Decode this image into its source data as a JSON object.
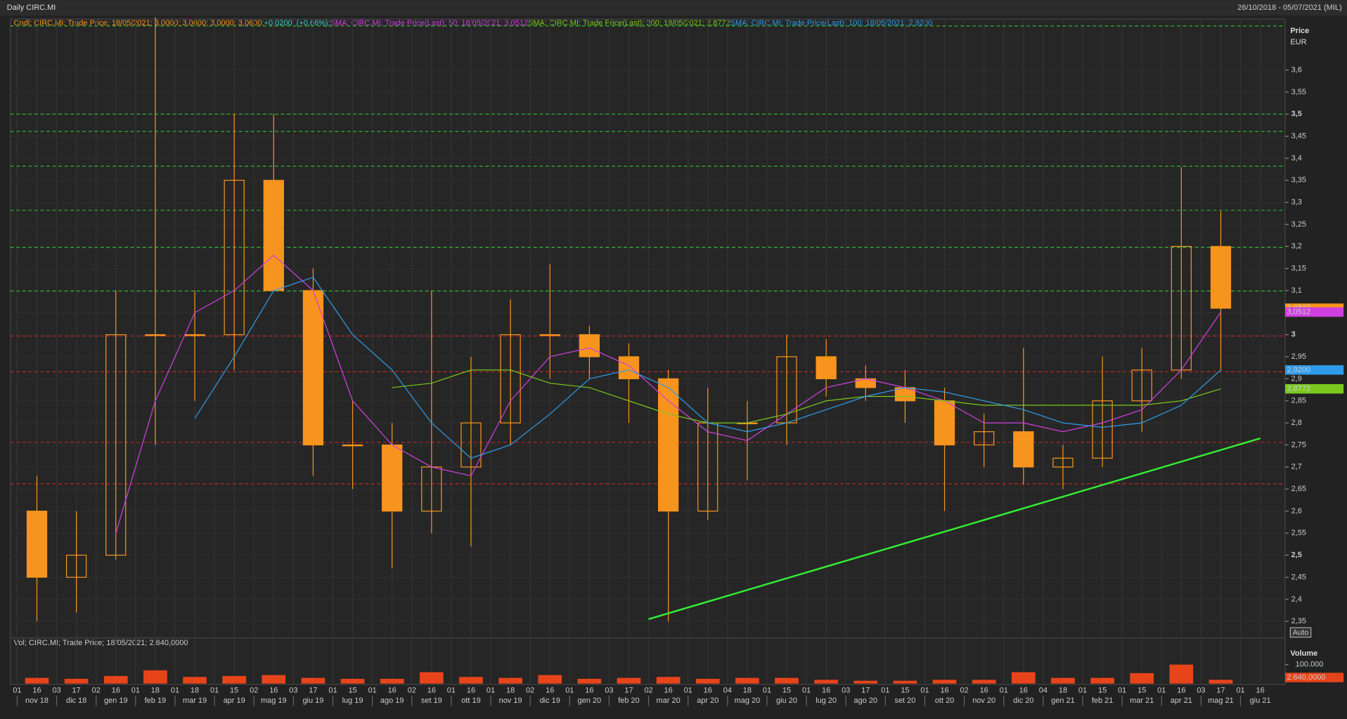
{
  "header": {
    "title": "Daily CIRC.MI",
    "range": "26/10/2018 - 05/07/2021 (MIL)",
    "auto": "Auto"
  },
  "chart_data": [
    {
      "type": "candlestick",
      "y_title": "Price",
      "y_unit": "EUR",
      "name": "Cndl; CIRC.MI; Trade Price; 18/05/2021; 3,0000; 3,0600; 3,0000; 3,0600;",
      "change": "+0,0200; (+0,66%);",
      "color": "#f7941d",
      "change_color": "#3fd0d0",
      "last_label": "3,0600",
      "categories": [
        "nov 18",
        "dic 18",
        "gen 19",
        "feb 19",
        "mar 19",
        "apr 19",
        "mag 19",
        "giu 19",
        "lug 19",
        "ago 19",
        "set 19",
        "ott 19",
        "nov 19",
        "dic 19",
        "gen 20",
        "feb 20",
        "mar 20",
        "apr 20",
        "mag 20",
        "giu 20",
        "lug 20",
        "ago 20",
        "set 20",
        "ott 20",
        "nov 20",
        "dic 20",
        "gen 21",
        "feb 21",
        "mar 21",
        "apr 21",
        "mag 21",
        "giu 21"
      ],
      "day_ticks": [
        "01",
        "16",
        "03",
        "17",
        "02",
        "16",
        "01",
        "18",
        "01",
        "18",
        "01",
        "15",
        "02",
        "16",
        "03",
        "17",
        "01",
        "15",
        "01",
        "16",
        "02",
        "16",
        "01",
        "16",
        "01",
        "18",
        "02",
        "16",
        "01",
        "16",
        "03",
        "17",
        "02",
        "16",
        "01",
        "16",
        "04",
        "18",
        "01",
        "15",
        "01",
        "16",
        "03",
        "17",
        "01",
        "15",
        "01",
        "16",
        "02",
        "16",
        "01",
        "16",
        "04",
        "18",
        "01",
        "15",
        "01",
        "15",
        "01",
        "16",
        "03",
        "17",
        "01",
        "16"
      ],
      "open": [
        2.6,
        2.45,
        2.5,
        3.0,
        3.0,
        3.0,
        3.35,
        3.1,
        2.75,
        2.75,
        2.6,
        2.7,
        2.8,
        3.0,
        3.0,
        2.95,
        2.9,
        2.6,
        2.8,
        2.8,
        2.95,
        2.9,
        2.88,
        2.85,
        2.75,
        2.78,
        2.7,
        2.72,
        2.85,
        2.92,
        3.2,
        null
      ],
      "high": [
        2.68,
        2.6,
        3.1,
        3.72,
        3.1,
        3.5,
        3.5,
        3.15,
        2.85,
        2.8,
        3.1,
        2.95,
        3.08,
        3.16,
        3.02,
        2.98,
        2.92,
        2.88,
        2.85,
        3.0,
        2.99,
        2.93,
        2.92,
        2.88,
        2.82,
        2.97,
        2.75,
        2.95,
        2.97,
        3.38,
        3.28,
        null
      ],
      "low": [
        2.35,
        2.37,
        2.49,
        2.75,
        2.85,
        2.92,
        3.1,
        2.68,
        2.65,
        2.47,
        2.55,
        2.52,
        2.75,
        2.9,
        2.9,
        2.8,
        2.35,
        2.58,
        2.67,
        2.75,
        2.86,
        2.85,
        2.8,
        2.6,
        2.7,
        2.66,
        2.65,
        2.7,
        2.78,
        2.9,
        2.92,
        null
      ],
      "close": [
        2.45,
        2.5,
        3.0,
        3.0,
        3.0,
        3.35,
        3.1,
        2.75,
        2.75,
        2.6,
        2.7,
        2.8,
        3.0,
        3.0,
        2.95,
        2.9,
        2.6,
        2.8,
        2.8,
        2.95,
        2.9,
        2.88,
        2.85,
        2.75,
        2.78,
        2.7,
        2.72,
        2.85,
        2.92,
        3.2,
        3.06,
        null
      ],
      "series": [
        {
          "name": "SMA; CIRC.MI; Trade Price(Last);  50;  18/05/2021; 3,0512",
          "color": "#d040e0",
          "last_label": "3,0512",
          "values": [
            null,
            null,
            2.55,
            2.85,
            3.05,
            3.1,
            3.18,
            3.1,
            2.85,
            2.75,
            2.7,
            2.68,
            2.85,
            2.95,
            2.97,
            2.93,
            2.85,
            2.78,
            2.76,
            2.82,
            2.88,
            2.9,
            2.88,
            2.85,
            2.8,
            2.8,
            2.78,
            2.8,
            2.83,
            2.92,
            3.0512,
            null
          ]
        },
        {
          "name": "SMA; CIRC.MI; Trade Price(Last);  200;  18/05/2021; 2,8772",
          "color": "#7ac81e",
          "last_label": "2,8772",
          "values": [
            null,
            null,
            null,
            null,
            null,
            null,
            null,
            null,
            null,
            2.88,
            2.89,
            2.92,
            2.92,
            2.89,
            2.88,
            2.85,
            2.82,
            2.8,
            2.8,
            2.82,
            2.85,
            2.86,
            2.86,
            2.85,
            2.84,
            2.84,
            2.84,
            2.84,
            2.84,
            2.85,
            2.8772,
            null
          ]
        },
        {
          "name": "SMA; CIRC.MI; Trade Price(Last);  100;  18/05/2021; 2,9200",
          "color": "#2f9be8",
          "last_label": "2,9200",
          "values": [
            null,
            null,
            null,
            null,
            2.81,
            2.95,
            3.1,
            3.13,
            3.0,
            2.92,
            2.8,
            2.72,
            2.75,
            2.82,
            2.9,
            2.92,
            2.88,
            2.8,
            2.78,
            2.8,
            2.83,
            2.86,
            2.88,
            2.87,
            2.85,
            2.83,
            2.8,
            2.79,
            2.8,
            2.84,
            2.92,
            null
          ]
        }
      ],
      "levels": [
        {
          "value": 3.7,
          "color": "#2fb52f"
        },
        {
          "value": 3.5,
          "color": "#2fb52f"
        },
        {
          "value": 3.461,
          "color": "#2fb52f"
        },
        {
          "value": 3.382,
          "color": "#2fb52f"
        },
        {
          "value": 3.282,
          "color": "#2fb52f"
        },
        {
          "value": 3.198,
          "color": "#2fb52f"
        },
        {
          "value": 3.099,
          "color": "#2fb52f"
        },
        {
          "value": 2.997,
          "color": "#c02828"
        },
        {
          "value": 2.916,
          "color": "#c02828"
        },
        {
          "value": 2.756,
          "color": "#c02828"
        },
        {
          "value": 2.662,
          "color": "#c02828"
        }
      ],
      "trendline": {
        "start": "mar 20",
        "end": "giu 21",
        "values": [
          2.355,
          2.765
        ],
        "color": "#33ee33"
      },
      "ylim": [
        2.32,
        3.7
      ],
      "yticks": [
        {
          "value": 3.6,
          "label": "3,6"
        },
        {
          "value": 3.55,
          "label": "3,55"
        },
        {
          "value": 3.5,
          "label": "3,5"
        },
        {
          "value": 3.45,
          "label": "3,45"
        },
        {
          "value": 3.4,
          "label": "3,4"
        },
        {
          "value": 3.35,
          "label": "3,35"
        },
        {
          "value": 3.3,
          "label": "3,3"
        },
        {
          "value": 3.25,
          "label": "3,25"
        },
        {
          "value": 3.2,
          "label": "3,2"
        },
        {
          "value": 3.15,
          "label": "3,15"
        },
        {
          "value": 3.1,
          "label": "3,1"
        },
        {
          "value": 3.05,
          "label": "3,05"
        },
        3,
        {
          "value": 2.95,
          "label": "2,95"
        },
        {
          "value": 2.9,
          "label": "2,9"
        },
        {
          "value": 2.85,
          "label": "2,85"
        },
        {
          "value": 2.8,
          "label": "2,8"
        },
        {
          "value": 2.75,
          "label": "2,75"
        },
        {
          "value": 2.7,
          "label": "2,7"
        },
        {
          "value": 2.65,
          "label": "2,65"
        },
        {
          "value": 2.6,
          "label": "2,6"
        },
        {
          "value": 2.55,
          "label": "2,55"
        },
        {
          "value": 2.5,
          "label": "2,5"
        },
        {
          "value": 2.45,
          "label": "2,45"
        },
        {
          "value": 2.4,
          "label": "2,4"
        },
        {
          "value": 2.35,
          "label": "2,35"
        }
      ],
      "grid": true
    },
    {
      "type": "bar",
      "y_title": "Volume",
      "name": "Vol; CIRC.MI; Trade Price; 18/05/2021; 2.640,0000",
      "color": "#e8441a",
      "values": [
        30000,
        25000,
        40000,
        70000,
        35000,
        40000,
        45000,
        30000,
        25000,
        25000,
        60000,
        35000,
        30000,
        45000,
        25000,
        30000,
        35000,
        25000,
        30000,
        30000,
        20000,
        15000,
        15000,
        20000,
        20000,
        60000,
        30000,
        30000,
        55000,
        100000,
        20000,
        null
      ],
      "last": 2640,
      "last_label": "2.640,0000",
      "ylim": [
        0,
        240000
      ],
      "yticks": [
        {
          "value": 100000,
          "label": "100.000"
        }
      ]
    }
  ]
}
